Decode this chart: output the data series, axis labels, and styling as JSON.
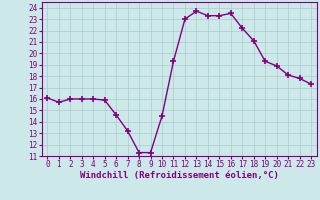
{
  "x": [
    0,
    1,
    2,
    3,
    4,
    5,
    6,
    7,
    8,
    9,
    10,
    11,
    12,
    13,
    14,
    15,
    16,
    17,
    18,
    19,
    20,
    21,
    22,
    23
  ],
  "y": [
    16.1,
    15.7,
    16.0,
    16.0,
    16.0,
    15.9,
    14.6,
    13.2,
    11.3,
    11.3,
    14.5,
    19.3,
    23.0,
    23.7,
    23.3,
    23.3,
    23.5,
    22.2,
    21.1,
    19.3,
    18.9,
    18.1,
    17.8,
    17.3
  ],
  "line_color": "#800080",
  "marker": "+",
  "marker_size": 4,
  "line_width": 1.0,
  "bg_color": "#cce8e8",
  "grid_color": "#aacccc",
  "xlabel": "Windchill (Refroidissement éolien,°C)",
  "xlabel_color": "#800080",
  "tick_color": "#800080",
  "xlim": [
    -0.5,
    23.5
  ],
  "ylim": [
    11,
    24.5
  ],
  "yticks": [
    11,
    12,
    13,
    14,
    15,
    16,
    17,
    18,
    19,
    20,
    21,
    22,
    23,
    24
  ],
  "xticks": [
    0,
    1,
    2,
    3,
    4,
    5,
    6,
    7,
    8,
    9,
    10,
    11,
    12,
    13,
    14,
    15,
    16,
    17,
    18,
    19,
    20,
    21,
    22,
    23
  ],
  "axis_fontsize": 6,
  "tick_fontsize": 5.5,
  "xlabel_fontsize": 6.5
}
